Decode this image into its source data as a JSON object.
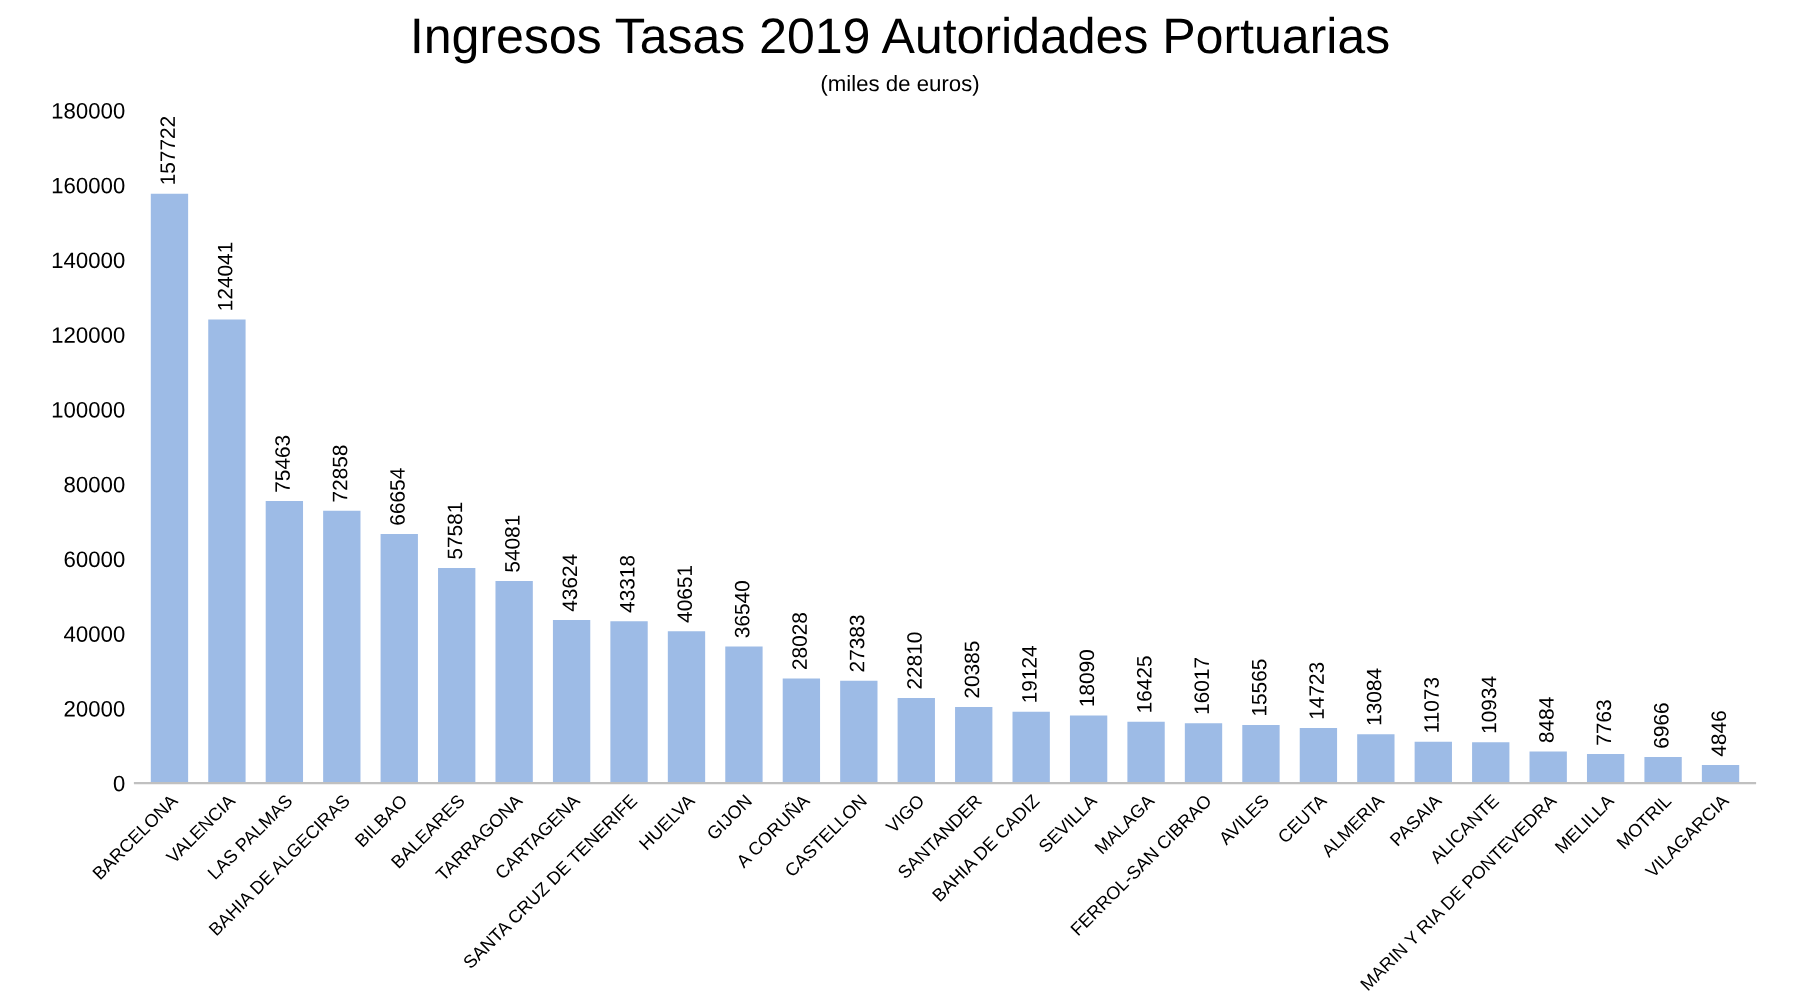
{
  "chart_data": {
    "type": "bar",
    "title": "Ingresos Tasas 2019 Autoridades Portuarias",
    "subtitle": "(miles de euros)",
    "categories": [
      "BARCELONA",
      "VALENCIA",
      "LAS PALMAS",
      "BAHIA DE ALGECIRAS",
      "BILBAO",
      "BALEARES",
      "TARRAGONA",
      "CARTAGENA",
      "SANTA CRUZ DE TENERIFE",
      "HUELVA",
      "GIJON",
      "A CORUÑA",
      "CASTELLON",
      "VIGO",
      "SANTANDER",
      "BAHIA DE CADIZ",
      "SEVILLA",
      "MALAGA",
      "FERROL-SAN CIBRAO",
      "AVILES",
      "CEUTA",
      "ALMERIA",
      "PASAIA",
      "ALICANTE",
      "MARIN Y RIA DE PONTEVEDRA",
      "MELILLA",
      "MOTRIL",
      "VILAGARCIA"
    ],
    "values": [
      157722,
      124041,
      75463,
      72858,
      66654,
      57581,
      54081,
      43624,
      43318,
      40651,
      36540,
      28028,
      27383,
      22810,
      20385,
      19124,
      18090,
      16425,
      16017,
      15565,
      14723,
      13084,
      11073,
      10934,
      8484,
      7763,
      6966,
      4846
    ],
    "color": "#9dbbe6",
    "data_labels": true,
    "grid": false,
    "ylim": [
      0,
      180000
    ],
    "yticks": [
      0,
      20000,
      40000,
      60000,
      80000,
      100000,
      120000,
      140000,
      160000,
      180000
    ]
  }
}
